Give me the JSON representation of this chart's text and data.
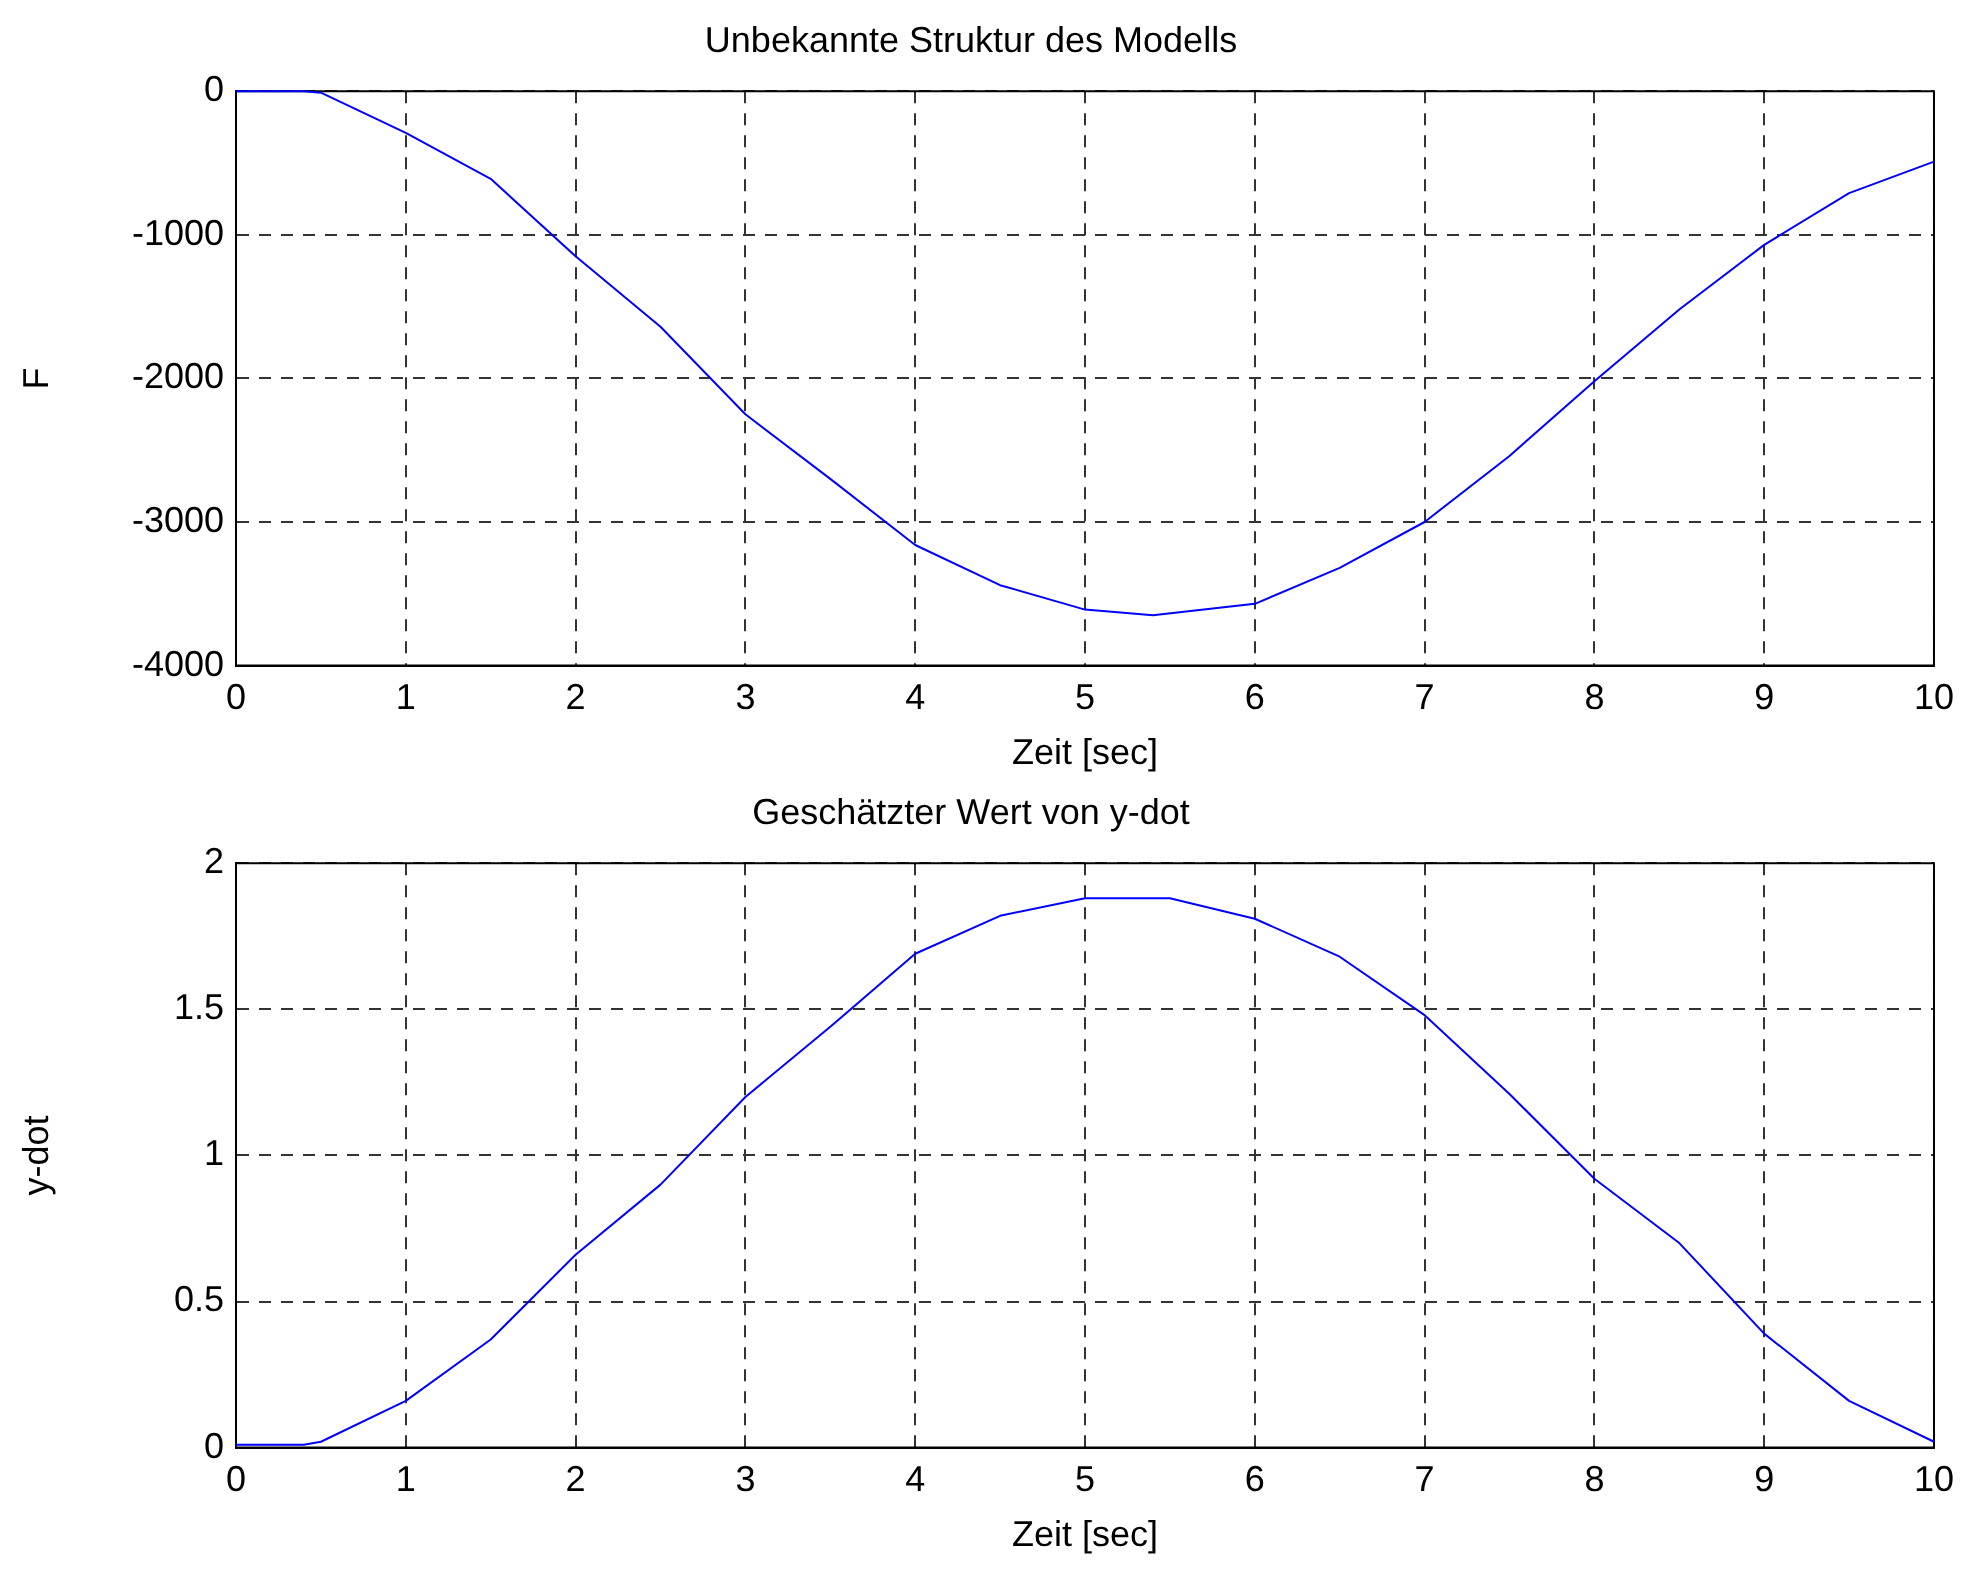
{
  "chart_data": [
    {
      "type": "line",
      "title": "Unbekannte Struktur des Modells",
      "xlabel": "Zeit [sec]",
      "ylabel": "F",
      "xlim": [
        0,
        10
      ],
      "ylim": [
        -4000,
        0
      ],
      "xticks": [
        0,
        1,
        2,
        3,
        4,
        5,
        6,
        7,
        8,
        9,
        10
      ],
      "yticks": [
        -4000,
        -3000,
        -2000,
        -1000,
        0
      ],
      "grid": true,
      "line_style": "solid",
      "marker": "none",
      "series": [
        {
          "color": "#0000ff",
          "x": [
            0,
            0.4,
            0.5,
            1,
            1.5,
            2,
            2.5,
            3,
            3.5,
            4,
            4.5,
            5,
            5.4,
            6,
            6.5,
            7,
            7.5,
            8,
            8.5,
            9,
            9.5,
            10
          ],
          "values": [
            0,
            0,
            -10,
            -290,
            -610,
            -1150,
            -1640,
            -2250,
            -2700,
            -3160,
            -3440,
            -3610,
            -3650,
            -3570,
            -3320,
            -3000,
            -2540,
            -2020,
            -1520,
            -1070,
            -710,
            -490
          ]
        }
      ]
    },
    {
      "type": "line",
      "title": "Geschätzter Wert von y-dot",
      "xlabel": "Zeit [sec]",
      "ylabel": "y-dot",
      "xlim": [
        0,
        10
      ],
      "ylim": [
        0,
        2
      ],
      "xticks": [
        0,
        1,
        2,
        3,
        4,
        5,
        6,
        7,
        8,
        9,
        10
      ],
      "yticks": [
        0,
        0.5,
        1,
        1.5,
        2
      ],
      "grid": true,
      "line_style": "solid",
      "marker": "none",
      "series": [
        {
          "color": "#0000ff",
          "x": [
            0,
            0.4,
            0.5,
            1,
            1.5,
            2,
            2.5,
            3,
            3.5,
            4,
            4.5,
            5,
            5.5,
            6,
            6.5,
            7,
            7.5,
            8,
            8.5,
            9,
            9.5,
            10
          ],
          "values": [
            0.01,
            0.01,
            0.02,
            0.16,
            0.37,
            0.66,
            0.9,
            1.2,
            1.44,
            1.69,
            1.82,
            1.88,
            1.88,
            1.81,
            1.68,
            1.48,
            1.21,
            0.92,
            0.7,
            0.39,
            0.16,
            0.02
          ]
        }
      ]
    }
  ]
}
